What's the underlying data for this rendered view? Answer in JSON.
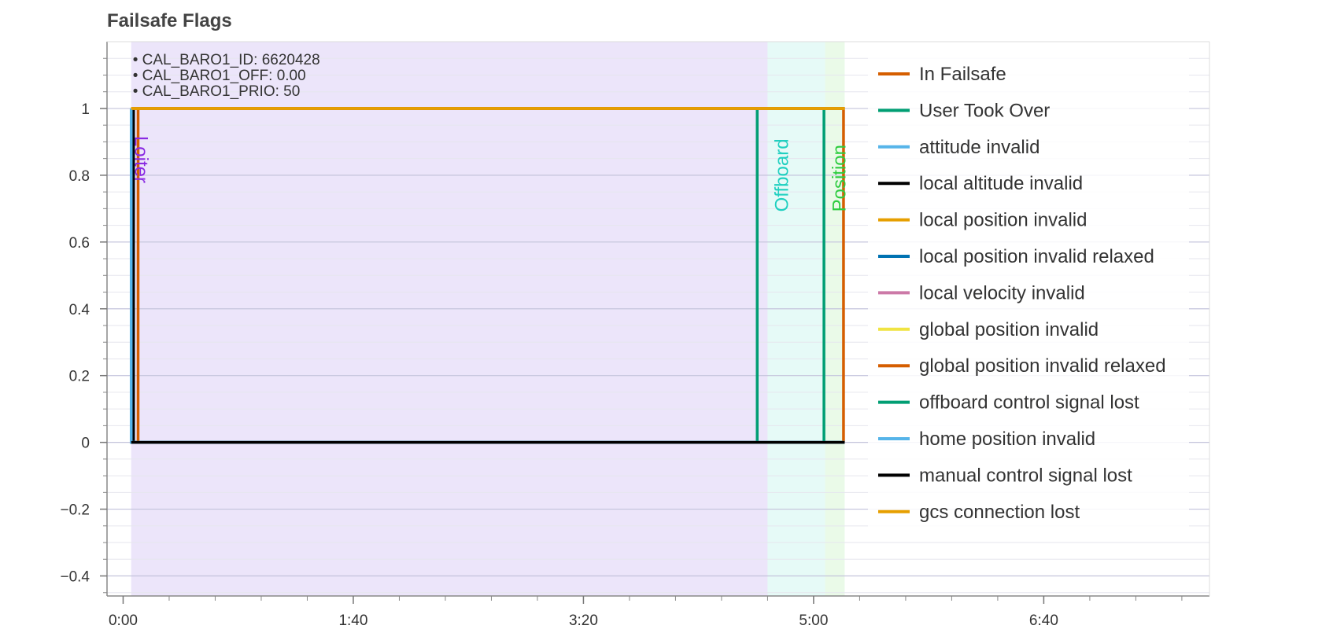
{
  "chart_data": {
    "type": "line",
    "title": "Failsafe Flags",
    "xlabel": "",
    "ylabel": "",
    "xlim_seconds": [
      -7,
      472
    ],
    "ylim": [
      -0.46,
      1.2
    ],
    "x_ticks": [
      {
        "value": 0,
        "label": "0:00"
      },
      {
        "value": 100,
        "label": "1:40"
      },
      {
        "value": 200,
        "label": "3:20"
      },
      {
        "value": 300,
        "label": "5:00"
      },
      {
        "value": 400,
        "label": "6:40"
      }
    ],
    "y_ticks": [
      {
        "value": -0.4,
        "label": "−0.4"
      },
      {
        "value": -0.2,
        "label": "−0.2"
      },
      {
        "value": 0,
        "label": "0"
      },
      {
        "value": 0.2,
        "label": "0.2"
      },
      {
        "value": 0.4,
        "label": "0.4"
      },
      {
        "value": 0.6,
        "label": "0.6"
      },
      {
        "value": 0.8,
        "label": "0.8"
      },
      {
        "value": 1,
        "label": "1"
      }
    ],
    "grid": true,
    "legend_position": "right",
    "flight_modes": [
      {
        "name": "Loiter",
        "start": 3.5,
        "end": 280,
        "fill": "#e0d4f7",
        "text_color": "#8a2be2"
      },
      {
        "name": "Offboard",
        "start": 280,
        "end": 305,
        "fill": "#d6f7f2",
        "text_color": "#20d0c0"
      },
      {
        "name": "Position",
        "start": 305,
        "end": 313.5,
        "fill": "#dcf7d8",
        "text_color": "#2ecc40"
      }
    ],
    "annotation_lines": [
      "• CAL_BARO1_ID: 6620428",
      "• CAL_BARO1_OFF: 0.00",
      "• CAL_BARO1_PRIO: 50"
    ],
    "series": [
      {
        "name": "In Failsafe",
        "color": "#d55e00",
        "points": [
          [
            3.5,
            0
          ],
          [
            6.5,
            0
          ],
          [
            6.5,
            1
          ],
          [
            313,
            1
          ],
          [
            313,
            0
          ],
          [
            313.5,
            0
          ]
        ]
      },
      {
        "name": "User Took Over",
        "color": "#009e73",
        "points": [
          [
            3.5,
            0
          ],
          [
            275.5,
            0
          ],
          [
            275.5,
            1
          ],
          [
            304.5,
            1
          ],
          [
            304.5,
            0
          ],
          [
            313.5,
            0
          ]
        ]
      },
      {
        "name": "attitude invalid",
        "color": "#56b4e9",
        "points": [
          [
            3.5,
            0
          ],
          [
            313.5,
            0
          ]
        ]
      },
      {
        "name": "local altitude invalid",
        "color": "#000000",
        "points": [
          [
            3.5,
            0
          ],
          [
            4.5,
            0
          ],
          [
            4.5,
            1
          ],
          [
            313.5,
            1
          ]
        ]
      },
      {
        "name": "local position invalid",
        "color": "#e69f00",
        "points": [
          [
            3.5,
            1
          ],
          [
            313.5,
            1
          ]
        ]
      },
      {
        "name": "local position invalid relaxed",
        "color": "#0072b2",
        "points": [
          [
            3.5,
            0
          ],
          [
            313.5,
            0
          ]
        ]
      },
      {
        "name": "local velocity invalid",
        "color": "#cc79a7",
        "points": [
          [
            3.5,
            0
          ],
          [
            313.5,
            0
          ]
        ]
      },
      {
        "name": "global position invalid",
        "color": "#f0e442",
        "points": [
          [
            3.5,
            1
          ],
          [
            313.5,
            1
          ]
        ]
      },
      {
        "name": "global position invalid relaxed",
        "color": "#d55e00",
        "points": [
          [
            3.5,
            1
          ],
          [
            313.5,
            1
          ]
        ]
      },
      {
        "name": "offboard control signal lost",
        "color": "#009e73",
        "points": [
          [
            3.5,
            0
          ],
          [
            313.5,
            0
          ]
        ]
      },
      {
        "name": "home position invalid",
        "color": "#56b4e9",
        "points": [
          [
            3.5,
            1
          ],
          [
            3.5,
            0
          ],
          [
            313.5,
            0
          ]
        ]
      },
      {
        "name": "manual control signal lost",
        "color": "#000000",
        "points": [
          [
            3.5,
            0
          ],
          [
            313.5,
            0
          ]
        ]
      },
      {
        "name": "gcs connection lost",
        "color": "#e69f00",
        "points": [
          [
            3.5,
            1
          ],
          [
            313.5,
            1
          ]
        ]
      }
    ]
  }
}
